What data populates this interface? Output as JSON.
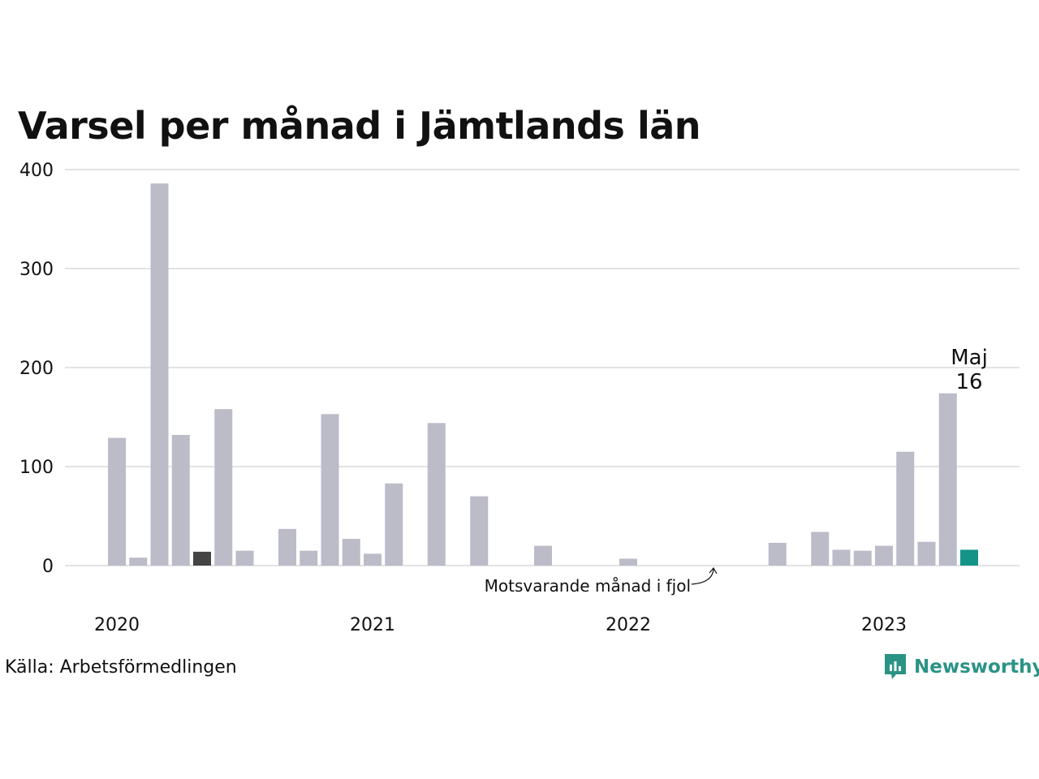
{
  "chart_data": {
    "type": "bar",
    "title": "Varsel per månad i Jämtlands län",
    "ylim": [
      0,
      400
    ],
    "yticks": [
      0,
      100,
      200,
      300,
      400
    ],
    "grid": true,
    "year_labels": [
      "2020",
      "2021",
      "2022",
      "2023"
    ],
    "series": [
      {
        "values": [
          129,
          8,
          386,
          132,
          14,
          158,
          15,
          0,
          37,
          15,
          153,
          27,
          12,
          83,
          0,
          144,
          0,
          70,
          0,
          0,
          20,
          0,
          0,
          0,
          7,
          0,
          0,
          0,
          0,
          0,
          0,
          23,
          0,
          34,
          16,
          15,
          20,
          115,
          24,
          174,
          16
        ]
      }
    ],
    "highlight": {
      "index": 40,
      "label_month": "Maj",
      "label_value": "16",
      "color": "#149487"
    },
    "comparison": {
      "index": 4,
      "label": "Motsvarande månad i fjol",
      "color": "#444444"
    },
    "bar_color": "#bcbbc8"
  },
  "footer": {
    "source": "Källa: Arbetsförmedlingen",
    "brand": "Newsworthy",
    "brand_icon": "newsworthy-logo-icon"
  }
}
